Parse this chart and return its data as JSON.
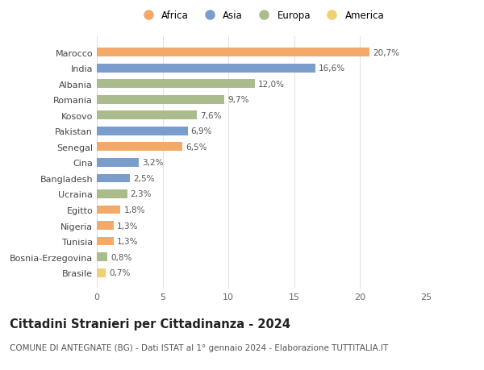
{
  "countries": [
    "Brasile",
    "Bosnia-Erzegovina",
    "Tunisia",
    "Nigeria",
    "Egitto",
    "Ucraina",
    "Bangladesh",
    "Cina",
    "Senegal",
    "Pakistan",
    "Kosovo",
    "Romania",
    "Albania",
    "India",
    "Marocco"
  ],
  "values": [
    0.7,
    0.8,
    1.3,
    1.3,
    1.8,
    2.3,
    2.5,
    3.2,
    6.5,
    6.9,
    7.6,
    9.7,
    12.0,
    16.6,
    20.7
  ],
  "labels": [
    "0,7%",
    "0,8%",
    "1,3%",
    "1,3%",
    "1,8%",
    "2,3%",
    "2,5%",
    "3,2%",
    "6,5%",
    "6,9%",
    "7,6%",
    "9,7%",
    "12,0%",
    "16,6%",
    "20,7%"
  ],
  "continents": [
    "America",
    "Europa",
    "Africa",
    "Africa",
    "Africa",
    "Europa",
    "Asia",
    "Asia",
    "Africa",
    "Asia",
    "Europa",
    "Europa",
    "Europa",
    "Asia",
    "Africa"
  ],
  "colors": {
    "Africa": "#F2A96A",
    "Asia": "#7B9DCB",
    "Europa": "#AABB8C",
    "America": "#F0D070"
  },
  "legend_order": [
    "Africa",
    "Asia",
    "Europa",
    "America"
  ],
  "xlim": [
    0,
    25
  ],
  "xticks": [
    0,
    5,
    10,
    15,
    20,
    25
  ],
  "title": "Cittadini Stranieri per Cittadinanza - 2024",
  "subtitle": "COMUNE DI ANTEGNATE (BG) - Dati ISTAT al 1° gennaio 2024 - Elaborazione TUTTITALIA.IT",
  "background_color": "#ffffff",
  "bar_height": 0.55,
  "grid_color": "#e0e0e0",
  "label_fontsize": 7.5,
  "ytick_fontsize": 8,
  "xtick_fontsize": 8,
  "title_fontsize": 10.5,
  "subtitle_fontsize": 7.5
}
